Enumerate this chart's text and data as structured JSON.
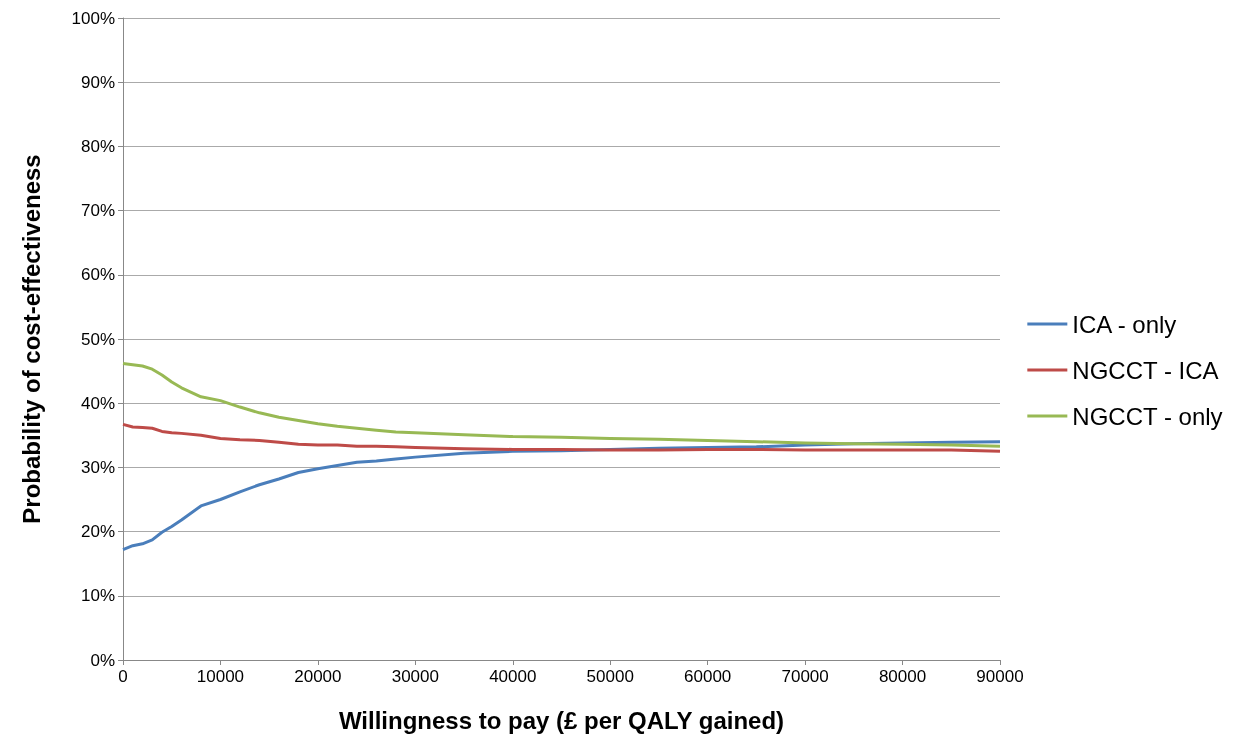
{
  "chart_data": {
    "type": "line",
    "xlabel": "Willingness to pay (£ per QALY gained)",
    "ylabel": "Probability of cost-effectiveness",
    "x": [
      0,
      1000,
      2000,
      3000,
      4000,
      5000,
      6000,
      8000,
      10000,
      12000,
      14000,
      16000,
      18000,
      20000,
      22000,
      24000,
      26000,
      28000,
      30000,
      35000,
      40000,
      45000,
      50000,
      55000,
      60000,
      65000,
      70000,
      75000,
      80000,
      85000,
      90000
    ],
    "series": [
      {
        "name": "ICA - only",
        "color": "#4a7ebb",
        "values": [
          17.2,
          17.8,
          18.1,
          18.7,
          19.9,
          20.8,
          21.8,
          24,
          25,
          26.2,
          27.3,
          28.2,
          29.2,
          29.8,
          30.3,
          30.8,
          31,
          31.3,
          31.6,
          32.2,
          32.5,
          32.6,
          32.8,
          33,
          33.1,
          33.2,
          33.5,
          33.7,
          33.8,
          33.9,
          34
        ]
      },
      {
        "name": "NGCCT - ICA",
        "color": "#be4b48",
        "values": [
          36.7,
          36.3,
          36.2,
          36.1,
          35.6,
          35.4,
          35.3,
          35,
          34.5,
          34.3,
          34.2,
          33.9,
          33.6,
          33.5,
          33.5,
          33.3,
          33.3,
          33.2,
          33.1,
          32.9,
          32.8,
          32.8,
          32.7,
          32.7,
          32.8,
          32.8,
          32.7,
          32.7,
          32.7,
          32.7,
          32.5
        ]
      },
      {
        "name": "NGCCT - only",
        "color": "#98b954",
        "values": [
          46.2,
          46,
          45.8,
          45.3,
          44.4,
          43.3,
          42.4,
          41,
          40.4,
          39.4,
          38.5,
          37.8,
          37.3,
          36.8,
          36.4,
          36.1,
          35.8,
          35.5,
          35.4,
          35.1,
          34.8,
          34.7,
          34.5,
          34.4,
          34.2,
          34,
          33.8,
          33.7,
          33.6,
          33.5,
          33.3
        ]
      }
    ],
    "xlim": [
      0,
      90000
    ],
    "xticks": [
      0,
      10000,
      20000,
      30000,
      40000,
      50000,
      60000,
      70000,
      80000,
      90000
    ],
    "ylim": [
      0,
      100
    ],
    "yticks": [
      {
        "value": 0,
        "label": "0%"
      },
      {
        "value": 10,
        "label": "10%"
      },
      {
        "value": 20,
        "label": "20%"
      },
      {
        "value": 30,
        "label": "30%"
      },
      {
        "value": 40,
        "label": "40%"
      },
      {
        "value": 50,
        "label": "50%"
      },
      {
        "value": 60,
        "label": "60%"
      },
      {
        "value": 70,
        "label": "70%"
      },
      {
        "value": 80,
        "label": "80%"
      },
      {
        "value": 90,
        "label": "90%"
      },
      {
        "value": 100,
        "label": "100%"
      }
    ],
    "grid": "y",
    "legend": "right",
    "marker": "none",
    "line_style": "solid"
  }
}
